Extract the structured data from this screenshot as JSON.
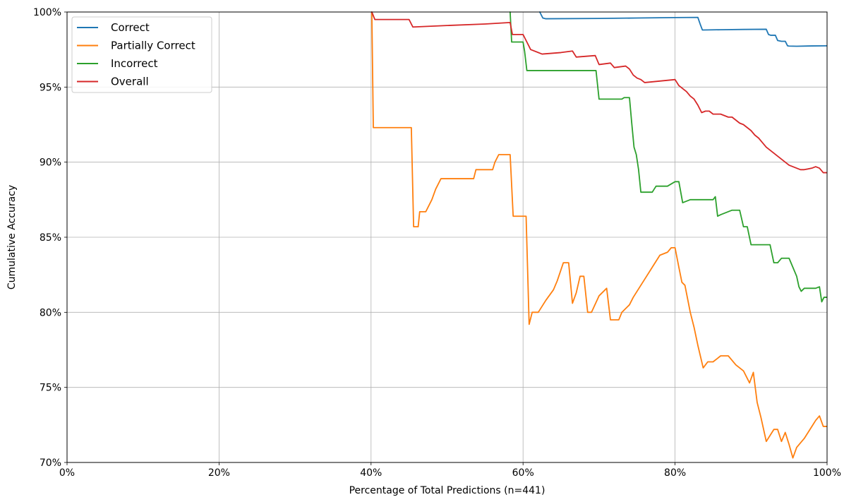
{
  "chart_data": {
    "type": "line",
    "title": "",
    "xlabel": "Percentage of Total Predictions (n=441)",
    "ylabel": "Cumulative Accuracy",
    "xlim": [
      0,
      100
    ],
    "ylim": [
      70,
      100
    ],
    "x_ticks": [
      0,
      20,
      40,
      60,
      80,
      100
    ],
    "x_tick_labels": [
      "0%",
      "20%",
      "40%",
      "60%",
      "80%",
      "100%"
    ],
    "y_ticks": [
      70,
      75,
      80,
      85,
      90,
      95,
      100
    ],
    "y_tick_labels": [
      "70%",
      "75%",
      "80%",
      "85%",
      "90%",
      "95%",
      "100%"
    ],
    "grid": true,
    "legend": "top-left",
    "series": [
      {
        "name": "Correct",
        "color": "#1f77b4",
        "x": [
          62.2,
          62.6,
          63.0,
          70.0,
          75.0,
          80.0,
          83.0,
          83.3,
          83.6,
          86.0,
          89.0,
          92.0,
          92.3,
          92.6,
          93.2,
          93.5,
          94.0,
          94.5,
          94.8,
          95.0,
          96.0,
          98.0,
          100.0
        ],
        "y": [
          100.0,
          99.6,
          99.55,
          99.57,
          99.6,
          99.63,
          99.64,
          99.2,
          98.8,
          98.82,
          98.84,
          98.85,
          98.5,
          98.45,
          98.45,
          98.1,
          98.05,
          98.05,
          97.75,
          97.73,
          97.72,
          97.74,
          97.75
        ]
      },
      {
        "name": "Partially Correct",
        "color": "#ff7f0e",
        "x": [
          40.1,
          40.3,
          45.3,
          45.6,
          46.2,
          46.4,
          47.2,
          48.0,
          48.5,
          49.2,
          53.5,
          53.8,
          56.0,
          56.3,
          56.8,
          58.3,
          58.7,
          60.4,
          60.8,
          61.2,
          61.7,
          62.0,
          63.0,
          64.0,
          64.5,
          65.3,
          66.0,
          66.5,
          67.0,
          67.5,
          68.0,
          68.5,
          69.0,
          70.0,
          71.0,
          71.5,
          72.0,
          72.6,
          73.0,
          74.0,
          74.5,
          75.5,
          76.0,
          77.0,
          78.0,
          79.0,
          79.5,
          80.0,
          80.5,
          80.9,
          81.3,
          82.0,
          82.5,
          83.0,
          83.7,
          84.3,
          84.8,
          85.0,
          86.0,
          87.0,
          88.0,
          89.0,
          89.8,
          90.3,
          90.8,
          91.3,
          92.0,
          93.0,
          93.5,
          94.0,
          94.5,
          95.0,
          95.5,
          96.0,
          97.0,
          97.5,
          98.0,
          98.5,
          99.0,
          99.5,
          100.0
        ],
        "y": [
          100.0,
          92.3,
          92.3,
          85.7,
          85.7,
          86.7,
          86.7,
          87.5,
          88.2,
          88.9,
          88.9,
          89.5,
          89.5,
          90.0,
          90.5,
          90.5,
          86.4,
          86.4,
          79.2,
          80.0,
          80.0,
          80.0,
          80.8,
          81.5,
          82.1,
          83.3,
          83.3,
          80.6,
          81.3,
          82.4,
          82.4,
          80.0,
          80.0,
          81.1,
          81.6,
          79.5,
          79.5,
          79.5,
          80.0,
          80.5,
          81.0,
          81.8,
          82.2,
          83.0,
          83.8,
          84.0,
          84.3,
          84.3,
          83.0,
          82.0,
          81.8,
          80.0,
          79.0,
          77.8,
          76.3,
          76.7,
          76.7,
          76.7,
          77.1,
          77.1,
          76.5,
          76.1,
          75.3,
          76.0,
          74.0,
          73.0,
          71.4,
          72.2,
          72.2,
          71.4,
          72.0,
          71.2,
          70.3,
          71.0,
          71.6,
          72.0,
          72.4,
          72.8,
          73.1,
          72.4,
          72.4
        ]
      },
      {
        "name": "Incorrect",
        "color": "#2ca02c",
        "x": [
          58.3,
          58.5,
          60.0,
          60.2,
          60.5,
          61.0,
          66.0,
          69.6,
          70.0,
          73.0,
          73.3,
          74.0,
          74.3,
          74.6,
          74.9,
          75.2,
          75.5,
          76.0,
          77.0,
          77.5,
          79.0,
          80.0,
          80.5,
          81.0,
          82.0,
          83.0,
          84.0,
          85.0,
          85.3,
          85.6,
          86.0,
          86.5,
          87.5,
          88.0,
          88.5,
          89.0,
          89.5,
          90.0,
          92.5,
          93.0,
          93.5,
          94.0,
          95.0,
          96.0,
          96.3,
          96.6,
          97.0,
          98.0,
          98.5,
          99.0,
          99.3,
          99.6,
          100.0
        ],
        "y": [
          100.0,
          98.0,
          98.0,
          97.4,
          96.1,
          96.1,
          96.1,
          96.1,
          94.2,
          94.2,
          94.3,
          94.3,
          92.6,
          91.0,
          90.5,
          89.5,
          88.0,
          88.0,
          88.0,
          88.4,
          88.4,
          88.7,
          88.7,
          87.3,
          87.5,
          87.5,
          87.5,
          87.5,
          87.7,
          86.4,
          86.5,
          86.6,
          86.8,
          86.8,
          86.8,
          85.7,
          85.7,
          84.5,
          84.5,
          83.3,
          83.3,
          83.6,
          83.6,
          82.4,
          81.7,
          81.4,
          81.6,
          81.6,
          81.6,
          81.7,
          80.7,
          81.0,
          81.0
        ]
      },
      {
        "name": "Overall",
        "color": "#d62728",
        "x": [
          40.1,
          40.5,
          45.0,
          45.5,
          50.0,
          55.0,
          58.3,
          58.6,
          60.0,
          60.5,
          61.0,
          62.5,
          65.0,
          66.5,
          67.0,
          69.5,
          70.0,
          71.5,
          72.0,
          73.5,
          74.0,
          74.5,
          75.0,
          75.5,
          76.0,
          78.0,
          80.0,
          80.5,
          81.0,
          81.5,
          82.0,
          82.5,
          83.0,
          83.5,
          84.0,
          84.5,
          85.0,
          86.0,
          87.0,
          87.5,
          88.0,
          88.5,
          89.0,
          89.5,
          90.0,
          90.5,
          91.0,
          91.5,
          92.0,
          92.5,
          93.0,
          93.5,
          94.0,
          94.5,
          95.0,
          95.5,
          96.0,
          96.5,
          97.0,
          98.0,
          98.5,
          99.0,
          99.5,
          100.0
        ],
        "y": [
          100.0,
          99.5,
          99.5,
          99.0,
          99.1,
          99.2,
          99.3,
          98.5,
          98.5,
          98.0,
          97.5,
          97.2,
          97.3,
          97.4,
          97.0,
          97.1,
          96.5,
          96.6,
          96.3,
          96.4,
          96.2,
          95.8,
          95.6,
          95.5,
          95.3,
          95.4,
          95.5,
          95.1,
          94.9,
          94.7,
          94.4,
          94.2,
          93.8,
          93.3,
          93.4,
          93.4,
          93.2,
          93.2,
          93.0,
          93.0,
          92.8,
          92.6,
          92.5,
          92.3,
          92.1,
          91.8,
          91.6,
          91.3,
          91.0,
          90.8,
          90.6,
          90.4,
          90.2,
          90.0,
          89.8,
          89.7,
          89.6,
          89.5,
          89.5,
          89.6,
          89.7,
          89.6,
          89.3,
          89.3
        ]
      }
    ]
  }
}
